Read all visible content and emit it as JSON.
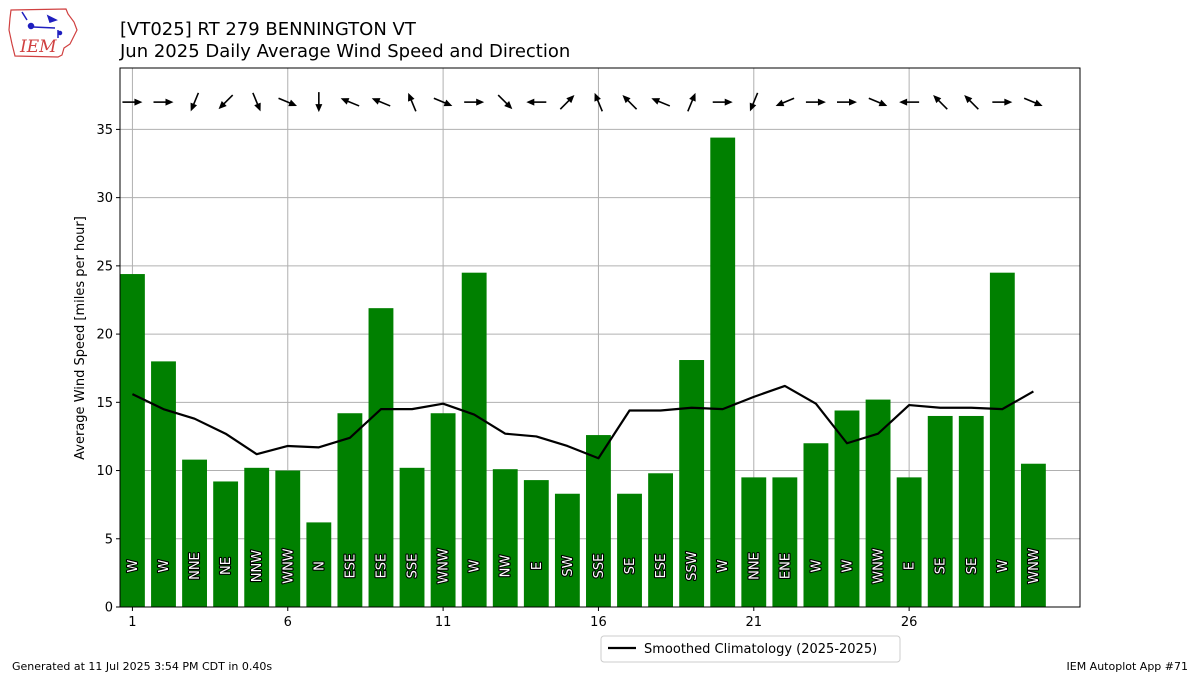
{
  "header": {
    "title": "[VT025] RT 279 BENNINGTON  VT",
    "subtitle": "Jun 2025 Daily Average Wind Speed and Direction"
  },
  "logo": {
    "text": "IEM",
    "colors": {
      "outline": "#d04040",
      "symbol": "#1f1fbf",
      "text": "#d04040"
    }
  },
  "footer": {
    "left": "Generated at 11 Jul 2025 3:54 PM CDT in 0.40s",
    "right": "IEM Autoplot App #71"
  },
  "legend": {
    "label": "Smoothed Climatology (2025-2025)",
    "placement": "bottom-center"
  },
  "chart_data": {
    "type": "bar",
    "ylabel": "Average Wind Speed [miles per hour]",
    "xlabel": "",
    "ylim": [
      0,
      39.5
    ],
    "xlim": [
      0.6,
      31.5
    ],
    "yticks": [
      0,
      5,
      10,
      15,
      20,
      25,
      30,
      35
    ],
    "xticks": [
      1,
      6,
      11,
      16,
      21,
      26
    ],
    "grid": true,
    "colors": {
      "bars": "#008000",
      "climatology": "#000000",
      "arrows": "#000000",
      "grid": "#b0b0b0"
    },
    "days": [
      1,
      2,
      3,
      4,
      5,
      6,
      7,
      8,
      9,
      10,
      11,
      12,
      13,
      14,
      15,
      16,
      17,
      18,
      19,
      20,
      21,
      22,
      23,
      24,
      25,
      26,
      27,
      28,
      29,
      30
    ],
    "speed": [
      24.4,
      18.0,
      10.8,
      9.2,
      10.2,
      10.0,
      6.2,
      14.2,
      21.9,
      10.2,
      14.2,
      24.5,
      10.1,
      9.3,
      8.3,
      12.6,
      8.3,
      9.8,
      18.1,
      34.4,
      9.5,
      9.5,
      12.0,
      14.4,
      15.2,
      9.5,
      14.0,
      14.0,
      24.5,
      10.5
    ],
    "direction": [
      "W",
      "W",
      "NNE",
      "NE",
      "NNW",
      "WNW",
      "N",
      "ESE",
      "ESE",
      "SSE",
      "WNW",
      "W",
      "NW",
      "E",
      "SW",
      "SSE",
      "SE",
      "ESE",
      "SSW",
      "W",
      "NNE",
      "ENE",
      "W",
      "W",
      "WNW",
      "E",
      "SE",
      "SE",
      "W",
      "WNW"
    ],
    "climatology": [
      15.6,
      14.5,
      13.8,
      12.7,
      11.2,
      11.8,
      11.7,
      12.4,
      14.5,
      14.5,
      14.9,
      14.1,
      12.7,
      12.5,
      11.8,
      10.9,
      14.4,
      14.4,
      14.6,
      14.5,
      15.4,
      16.2,
      14.9,
      12.0,
      12.7,
      14.8,
      14.6,
      14.6,
      14.5,
      15.8
    ]
  }
}
